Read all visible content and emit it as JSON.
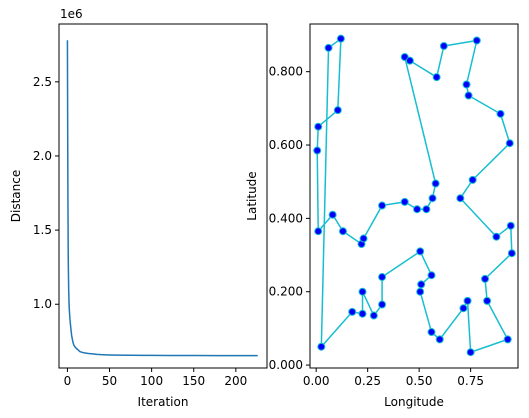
{
  "chart_data": [
    {
      "type": "line",
      "xlabel": "Iteration",
      "ylabel": "Distance",
      "y_offset_label": "1e6",
      "xlim": [
        -10,
        237
      ],
      "ylim": [
        570000,
        2890000
      ],
      "xticks": [
        0,
        50,
        100,
        150,
        200
      ],
      "xtick_labels": [
        "0",
        "50",
        "100",
        "150",
        "200"
      ],
      "yticks": [
        1000000,
        1500000,
        2000000,
        2500000
      ],
      "ytick_labels": [
        "1.0",
        "1.5",
        "2.0",
        "2.5"
      ],
      "grid": false,
      "line_color": "#1f77b4",
      "x": [
        0,
        0.3,
        0.6,
        1,
        1.5,
        2,
        2.5,
        3,
        4,
        5,
        6,
        7,
        8,
        10,
        12,
        15,
        18,
        20,
        25,
        30,
        35,
        40,
        50,
        60,
        75,
        90,
        100,
        120,
        150,
        180,
        200,
        210,
        226
      ],
      "y": [
        2780000,
        2200000,
        1700000,
        1300000,
        1100000,
        990000,
        940000,
        900000,
        840000,
        790000,
        760000,
        735000,
        720000,
        705000,
        695000,
        680000,
        675000,
        672000,
        668000,
        665000,
        662000,
        660000,
        658000,
        657000,
        656000,
        655500,
        655000,
        654500,
        654000,
        653800,
        653600,
        653500,
        653400
      ]
    },
    {
      "type": "scatter",
      "xlabel": "Longitude",
      "ylabel": "Latitude",
      "xlim": [
        -0.03,
        0.98
      ],
      "ylim": [
        -0.008,
        0.93
      ],
      "xticks": [
        0,
        0.25,
        0.5,
        0.75
      ],
      "xtick_labels": [
        "0.00",
        "0.25",
        "0.50",
        "0.75"
      ],
      "yticks": [
        0,
        0.2,
        0.4,
        0.6,
        0.8
      ],
      "ytick_labels": [
        "0.000",
        "0.200",
        "0.400",
        "0.600",
        "0.800"
      ],
      "grid": false,
      "route_color": "#17becf",
      "marker_fill": "#0000ff",
      "marker_edge": "#17becf",
      "closed_route": true,
      "points": [
        [
          0.06,
          0.865
        ],
        [
          0.12,
          0.89
        ],
        [
          0.105,
          0.695
        ],
        [
          0.01,
          0.65
        ],
        [
          0.005,
          0.585
        ],
        [
          0.01,
          0.365
        ],
        [
          0.08,
          0.41
        ],
        [
          0.13,
          0.365
        ],
        [
          0.22,
          0.33
        ],
        [
          0.23,
          0.345
        ],
        [
          0.32,
          0.435
        ],
        [
          0.43,
          0.445
        ],
        [
          0.49,
          0.425
        ],
        [
          0.535,
          0.425
        ],
        [
          0.565,
          0.455
        ],
        [
          0.58,
          0.495
        ],
        [
          0.43,
          0.84
        ],
        [
          0.455,
          0.83
        ],
        [
          0.585,
          0.785
        ],
        [
          0.62,
          0.87
        ],
        [
          0.78,
          0.885
        ],
        [
          0.73,
          0.765
        ],
        [
          0.74,
          0.735
        ],
        [
          0.895,
          0.685
        ],
        [
          0.94,
          0.605
        ],
        [
          0.76,
          0.505
        ],
        [
          0.7,
          0.455
        ],
        [
          0.875,
          0.35
        ],
        [
          0.945,
          0.38
        ],
        [
          0.95,
          0.305
        ],
        [
          0.82,
          0.235
        ],
        [
          0.83,
          0.175
        ],
        [
          0.93,
          0.07
        ],
        [
          0.75,
          0.035
        ],
        [
          0.735,
          0.175
        ],
        [
          0.715,
          0.155
        ],
        [
          0.6,
          0.07
        ],
        [
          0.56,
          0.09
        ],
        [
          0.505,
          0.2
        ],
        [
          0.51,
          0.22
        ],
        [
          0.56,
          0.245
        ],
        [
          0.505,
          0.31
        ],
        [
          0.32,
          0.24
        ],
        [
          0.32,
          0.165
        ],
        [
          0.28,
          0.135
        ],
        [
          0.225,
          0.2
        ],
        [
          0.225,
          0.14
        ],
        [
          0.175,
          0.145
        ],
        [
          0.025,
          0.05
        ]
      ]
    }
  ]
}
